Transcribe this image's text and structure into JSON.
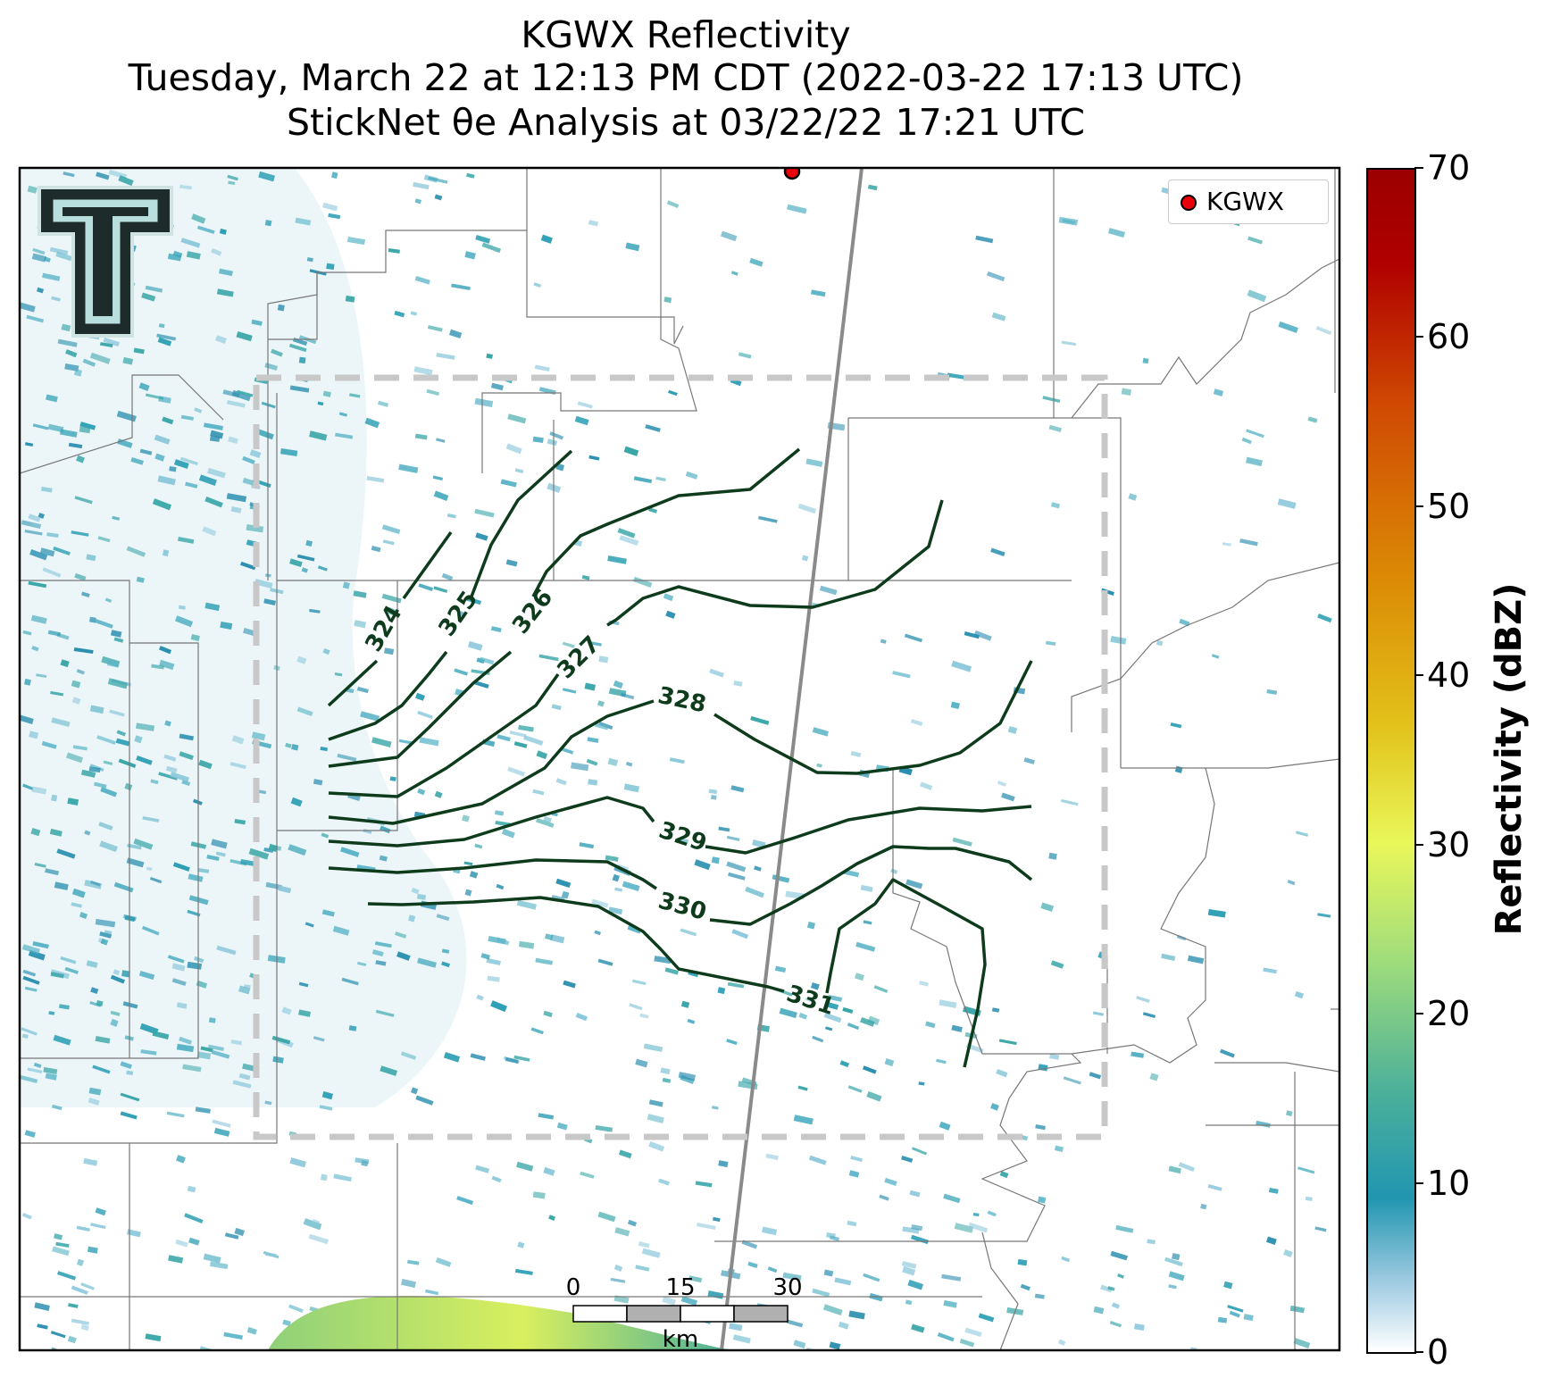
{
  "title": {
    "line1": "KGWX Reflectivity",
    "line2": "Tuesday, March 22 at 12:13 PM CDT (2022-03-22 17:13 UTC)",
    "line3": "StickNet θe Analysis at 03/22/22 17:21 UTC"
  },
  "legend": {
    "station_label": "KGWX",
    "station_color": "#e8000b"
  },
  "colorbar": {
    "label": "Reflectivity (dBZ)",
    "ticks": [
      "0",
      "10",
      "20",
      "30",
      "40",
      "50",
      "60",
      "70"
    ],
    "range": [
      0,
      70
    ]
  },
  "contours": {
    "color": "#0d3b1c",
    "labels": [
      "324",
      "325",
      "326",
      "327",
      "328",
      "329",
      "330",
      "331"
    ]
  },
  "scale_bar": {
    "ticks": [
      "0",
      "15",
      "30"
    ],
    "unit": "km"
  },
  "colors": {
    "analysis_box": "#c8c8c8",
    "radar_echo": "#2f9fb5",
    "boundary": "#777777"
  },
  "icons": {
    "logo": "texas-tech-double-t-logo"
  }
}
